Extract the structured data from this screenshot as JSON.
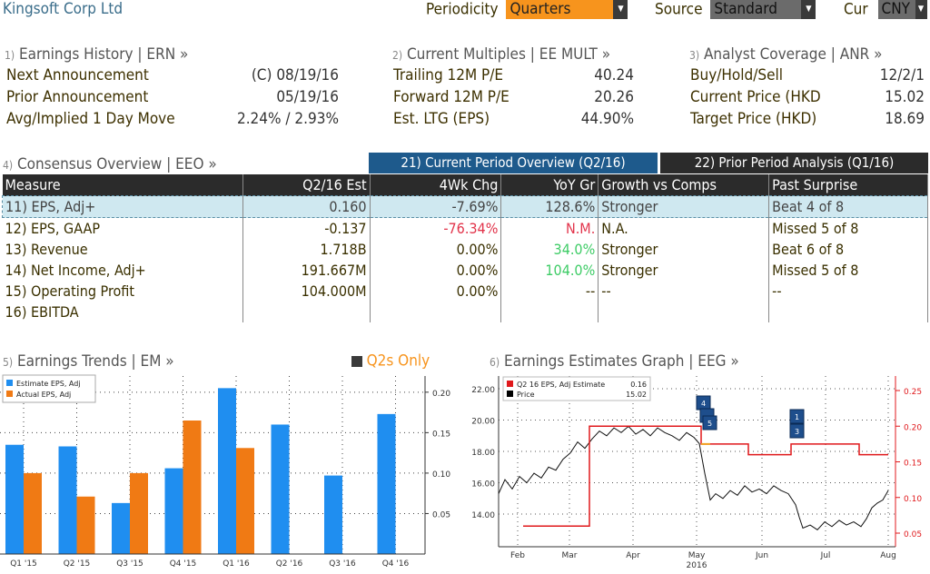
{
  "header": {
    "company": "Kingsoft Corp Ltd",
    "periodicity_label": "Periodicity",
    "periodicity_value": "Quarters",
    "source_label": "Source",
    "source_value": "Standard",
    "cur_label": "Cur",
    "cur_value": "CNY"
  },
  "erh": {
    "num": "1)",
    "title": "Earnings History | ERN »",
    "rows": [
      {
        "label": "Next Announcement",
        "value": "(C)  08/19/16"
      },
      {
        "label": "Prior Announcement",
        "value": "05/19/16"
      },
      {
        "label": "Avg/Implied 1 Day Move",
        "value": "2.24% / 2.93%"
      }
    ]
  },
  "mult": {
    "num": "2)",
    "title": "Current Multiples | EE MULT »",
    "rows": [
      {
        "label": "Trailing 12M P/E",
        "value": "40.24"
      },
      {
        "label": "Forward 12M P/E",
        "value": "20.26"
      },
      {
        "label": "Est. LTG (EPS)",
        "value": "44.90%"
      }
    ]
  },
  "anr": {
    "num": "3)",
    "title": "Analyst Coverage | ANR »",
    "rows": [
      {
        "label": "Buy/Hold/Sell",
        "value": "12/2/1"
      },
      {
        "label": "Current Price (HKD",
        "value": "15.02"
      },
      {
        "label": "Target Price (HKD)",
        "value": "18.69"
      }
    ]
  },
  "consensus": {
    "num": "4)",
    "title": "Consensus Overview | EEO »",
    "tab_current": "21) Current Period Overview (Q2/16)",
    "tab_prior": "22) Prior Period Analysis (Q1/16)",
    "columns": [
      "Measure",
      "Q2/16 Est",
      "4Wk Chg",
      "YoY Gr",
      "Growth vs Comps",
      "Past Surprise"
    ],
    "rows": [
      {
        "measure": "11) EPS, Adj+",
        "est": "0.160",
        "chg": "-7.69%",
        "yoy": "128.6%",
        "comps": "Stronger",
        "surprise": "Beat 4 of 8"
      },
      {
        "measure": "12) EPS, GAAP",
        "est": "-0.137",
        "chg": "-76.34%",
        "yoy": "N.M.",
        "comps": "N.A.",
        "surprise": "Missed 5 of 8"
      },
      {
        "measure": "13) Revenue",
        "est": "1.718B",
        "chg": "0.00%",
        "yoy": "34.0%",
        "comps": "Stronger",
        "surprise": "Beat 6 of 8"
      },
      {
        "measure": "14) Net Income, Adj+",
        "est": "191.667M",
        "chg": "0.00%",
        "yoy": "104.0%",
        "comps": "Stronger",
        "surprise": "Missed 5 of 8"
      },
      {
        "measure": "15) Operating Profit",
        "est": "104.000M",
        "chg": "0.00%",
        "yoy": "--",
        "comps": "--",
        "surprise": "--"
      },
      {
        "measure": "16) EBITDA",
        "est": "",
        "chg": "",
        "yoy": "",
        "comps": "",
        "surprise": ""
      }
    ]
  },
  "trends": {
    "num": "5)",
    "title": "Earnings Trends | EM »",
    "toggle": "Q2s Only"
  },
  "graph": {
    "num": "6)",
    "title": "Earnings Estimates Graph | EEG »"
  },
  "chart_data": [
    {
      "type": "bar",
      "categories": [
        "Q1 '15",
        "Q2 '15",
        "Q3 '15",
        "Q4 '15",
        "Q1 '16",
        "Q2 '16",
        "Q3 '16",
        "Q4 '16"
      ],
      "series": [
        {
          "name": "Estimate EPS, Adj",
          "color": "#1f8ef0",
          "values": [
            0.135,
            0.133,
            0.063,
            0.106,
            0.205,
            0.16,
            0.097,
            0.173
          ]
        },
        {
          "name": "Actual EPS, Adj",
          "color": "#f07a14",
          "values": [
            0.1,
            0.071,
            0.1,
            0.165,
            0.131,
            null,
            null,
            null
          ]
        }
      ],
      "yticks": [
        "0.20",
        "0.15",
        "0.10",
        "0.05"
      ],
      "ylim": [
        0,
        0.22
      ]
    },
    {
      "type": "line",
      "x_ticks": [
        "Feb",
        "Mar",
        "Apr",
        "May",
        "Jun",
        "Jul",
        "Aug"
      ],
      "x_year": "2016",
      "left_ticks": [
        "22.00",
        "20.00",
        "18.00",
        "16.00",
        "14.00"
      ],
      "right_ticks": [
        "0.25",
        "0.20",
        "0.15",
        "0.10",
        "0.05"
      ],
      "legend": [
        {
          "name": "Q2 16 EPS, Adj Estimate",
          "value": "0.16",
          "color": "#e0191c"
        },
        {
          "name": "Price",
          "value": "15.02",
          "color": "#000000"
        }
      ],
      "markers": [
        "4",
        "5",
        "1",
        "3"
      ]
    }
  ]
}
